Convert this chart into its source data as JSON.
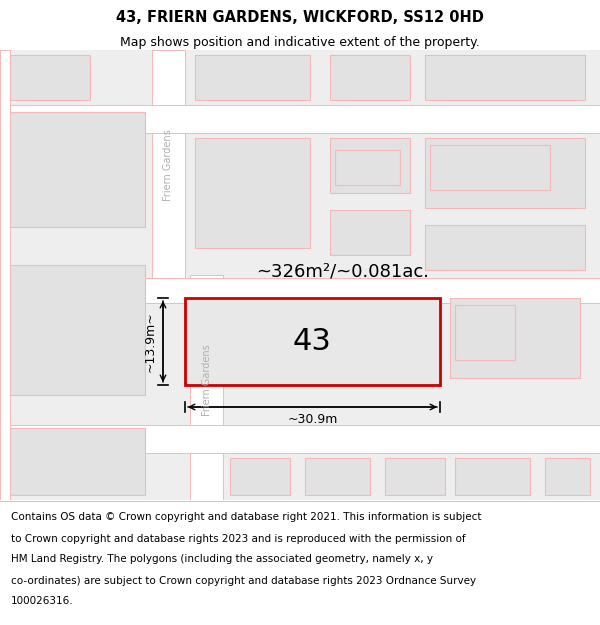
{
  "title": "43, FRIERN GARDENS, WICKFORD, SS12 0HD",
  "subtitle": "Map shows position and indicative extent of the property.",
  "footer_lines": [
    "Contains OS data © Crown copyright and database right 2021. This information is subject",
    "to Crown copyright and database rights 2023 and is reproduced with the permission of",
    "HM Land Registry. The polygons (including the associated geometry, namely x, y",
    "co-ordinates) are subject to Crown copyright and database rights 2023 Ordnance Survey",
    "100026316."
  ],
  "area_text": "~326m²/~0.081ac.",
  "number_label": "43",
  "width_label": "~30.9m",
  "height_label": "~13.9m~",
  "map_bg": "#eeeeee",
  "road_color": "#ffffff",
  "road_outline_color": "#f5b8b8",
  "building_fc": "#e2e2e2",
  "building_ec": "#f5b8b8",
  "highlight_color": "#cc0000",
  "plot_fc": "#e8e8e8",
  "title_fontsize": 10.5,
  "subtitle_fontsize": 9,
  "footer_fontsize": 7.5,
  "area_fontsize": 13,
  "label_fontsize": 22,
  "dim_fontsize": 9
}
